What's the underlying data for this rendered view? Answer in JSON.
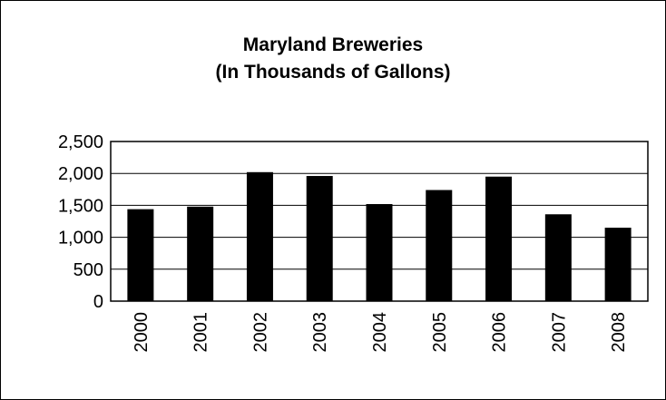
{
  "chart_data": {
    "type": "bar",
    "title": "Maryland Breweries",
    "subtitle": "(In Thousands of Gallons)",
    "xlabel": "",
    "ylabel": "",
    "categories": [
      "2000",
      "2001",
      "2002",
      "2003",
      "2004",
      "2005",
      "2006",
      "2007",
      "2008"
    ],
    "values": [
      1440,
      1480,
      2020,
      1960,
      1520,
      1740,
      1950,
      1360,
      1150
    ],
    "ylim": [
      0,
      2500
    ],
    "yticks": [
      0,
      500,
      1000,
      1500,
      2000,
      2500
    ],
    "ytick_labels": [
      "0",
      "500",
      "1,000",
      "1,500",
      "2,000",
      "2,500"
    ],
    "grid": true,
    "legend": "none",
    "bar_color": "#000000"
  }
}
